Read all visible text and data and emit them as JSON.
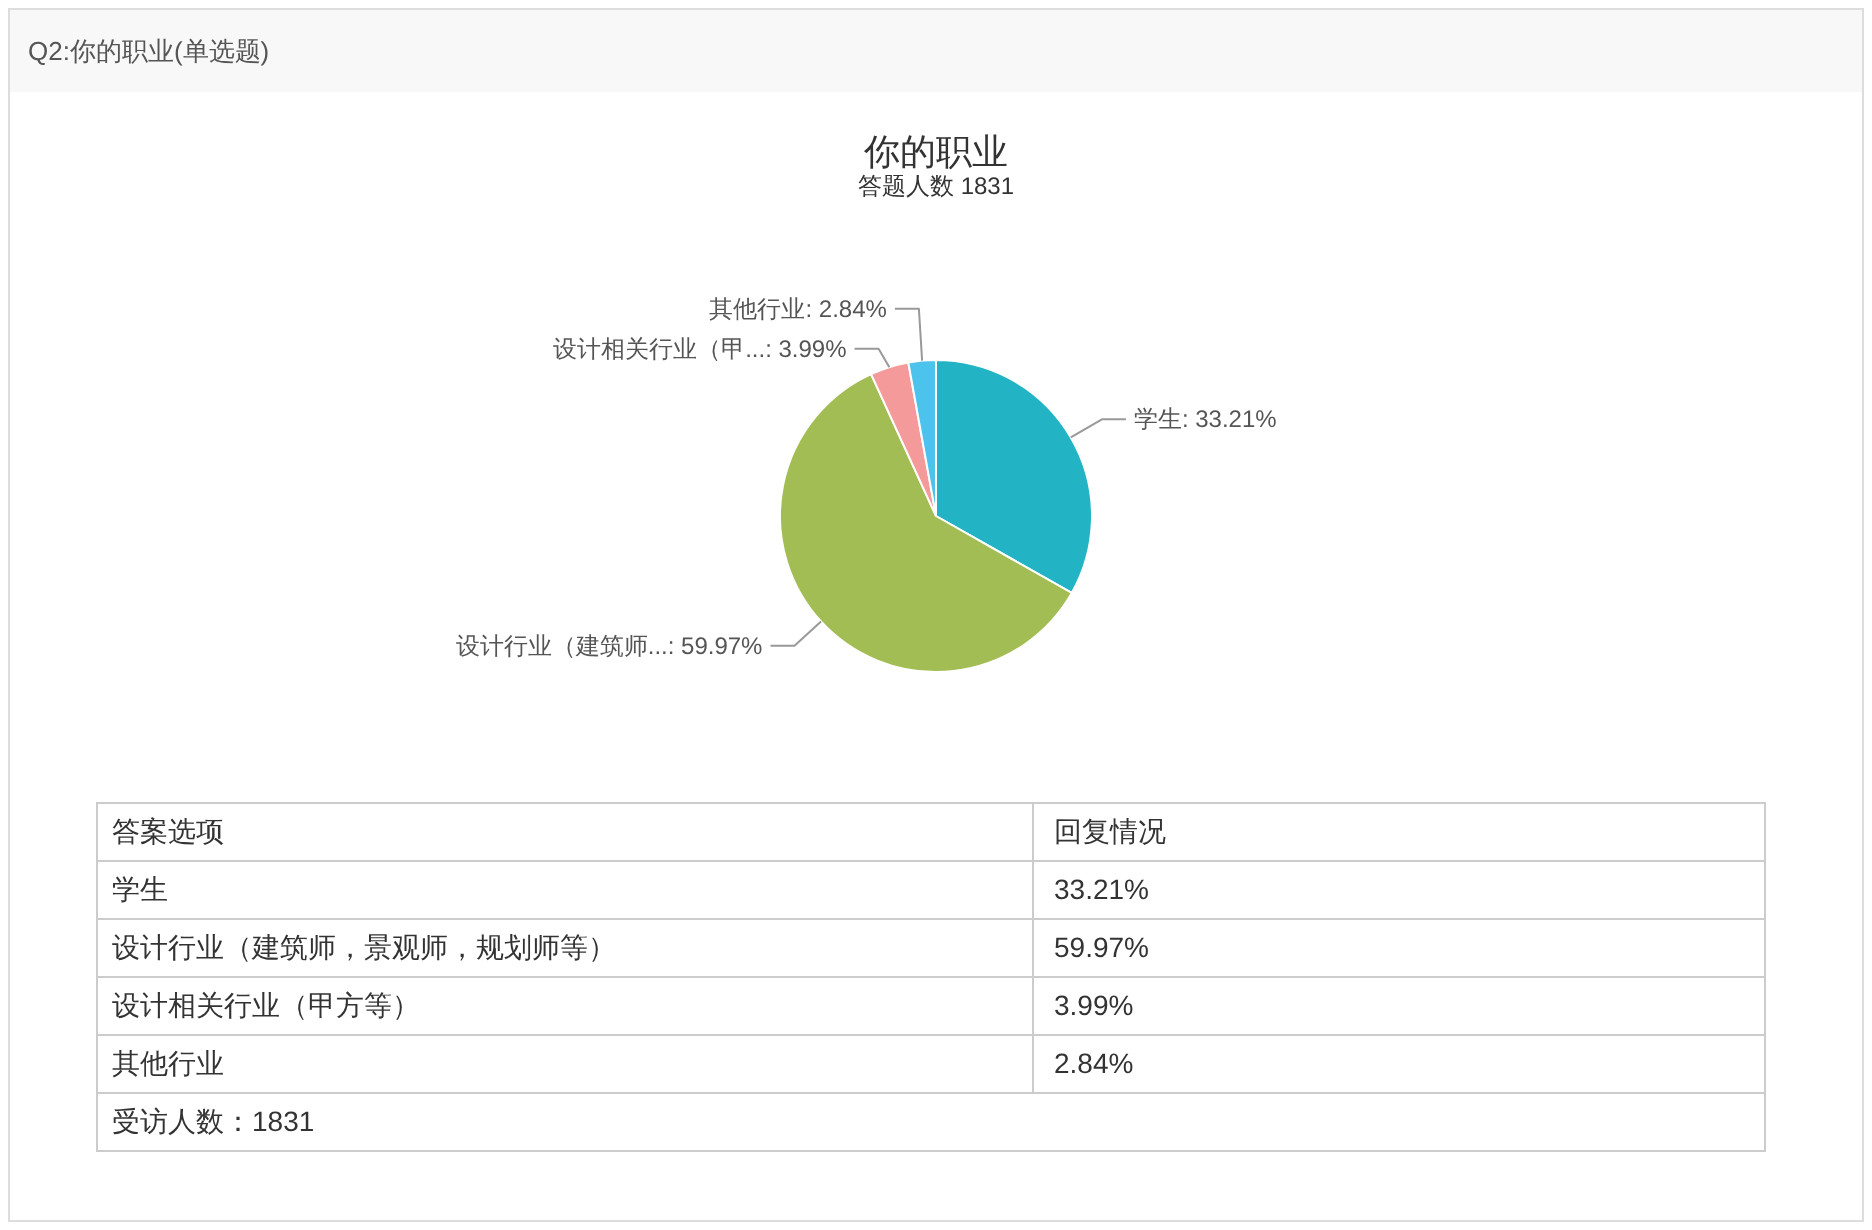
{
  "chart_data": [
    {
      "type": "pie",
      "title": "你的职业",
      "subtitle": "答题人数 1831",
      "categories": [
        "学生",
        "设计行业（建筑师...",
        "设计相关行业（甲...",
        "其他行业"
      ],
      "values": [
        33.21,
        59.97,
        3.99,
        2.84
      ],
      "colors": [
        "#22b4c4",
        "#a3bd55",
        "#f59a9b",
        "#4cc3ec"
      ],
      "value_labels": [
        "33.21%",
        "59.97%",
        "3.99%",
        "2.84%"
      ],
      "annotations": [
        "Q2:你的职业(单选题)"
      ]
    },
    {
      "type": "other",
      "categories": [
        "学生",
        "设计行业（建筑师，景观师，规划师等）",
        "设计相关行业（甲方等）",
        "其他行业"
      ],
      "value_labels": [
        "33.21%",
        "59.97%",
        "3.99%",
        "2.84%"
      ],
      "annotations": [
        "答案选项",
        "回复情况",
        "受访人数：1831"
      ]
    }
  ]
}
